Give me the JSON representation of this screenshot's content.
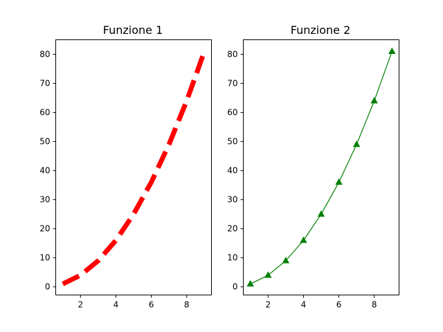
{
  "chart_data": [
    {
      "type": "line",
      "title": "Funzione 1",
      "xlabel": "",
      "ylabel": "",
      "x": [
        1,
        2,
        3,
        4,
        5,
        6,
        7,
        8,
        9
      ],
      "series": [
        {
          "values": [
            1,
            4,
            9,
            16,
            25,
            36,
            49,
            64,
            81
          ],
          "color": "#ff0000",
          "line_style": "dashed",
          "marker": "none"
        }
      ],
      "xlim": [
        0.6,
        9.4
      ],
      "ylim": [
        -2.8,
        85
      ],
      "xticks": [
        2,
        4,
        6,
        8
      ],
      "yticks": [
        0,
        10,
        20,
        30,
        40,
        50,
        60,
        70,
        80
      ],
      "grid": false
    },
    {
      "type": "line",
      "title": "Funzione 2",
      "xlabel": "",
      "ylabel": "",
      "x": [
        1,
        2,
        3,
        4,
        5,
        6,
        7,
        8,
        9
      ],
      "series": [
        {
          "values": [
            1,
            4,
            9,
            16,
            25,
            36,
            49,
            64,
            81
          ],
          "color": "#008000",
          "line_style": "solid",
          "marker": "triangle-up"
        }
      ],
      "xlim": [
        0.6,
        9.4
      ],
      "ylim": [
        -2.8,
        85
      ],
      "xticks": [
        2,
        4,
        6,
        8
      ],
      "yticks": [
        0,
        10,
        20,
        30,
        40,
        50,
        60,
        70,
        80
      ],
      "grid": false
    }
  ]
}
